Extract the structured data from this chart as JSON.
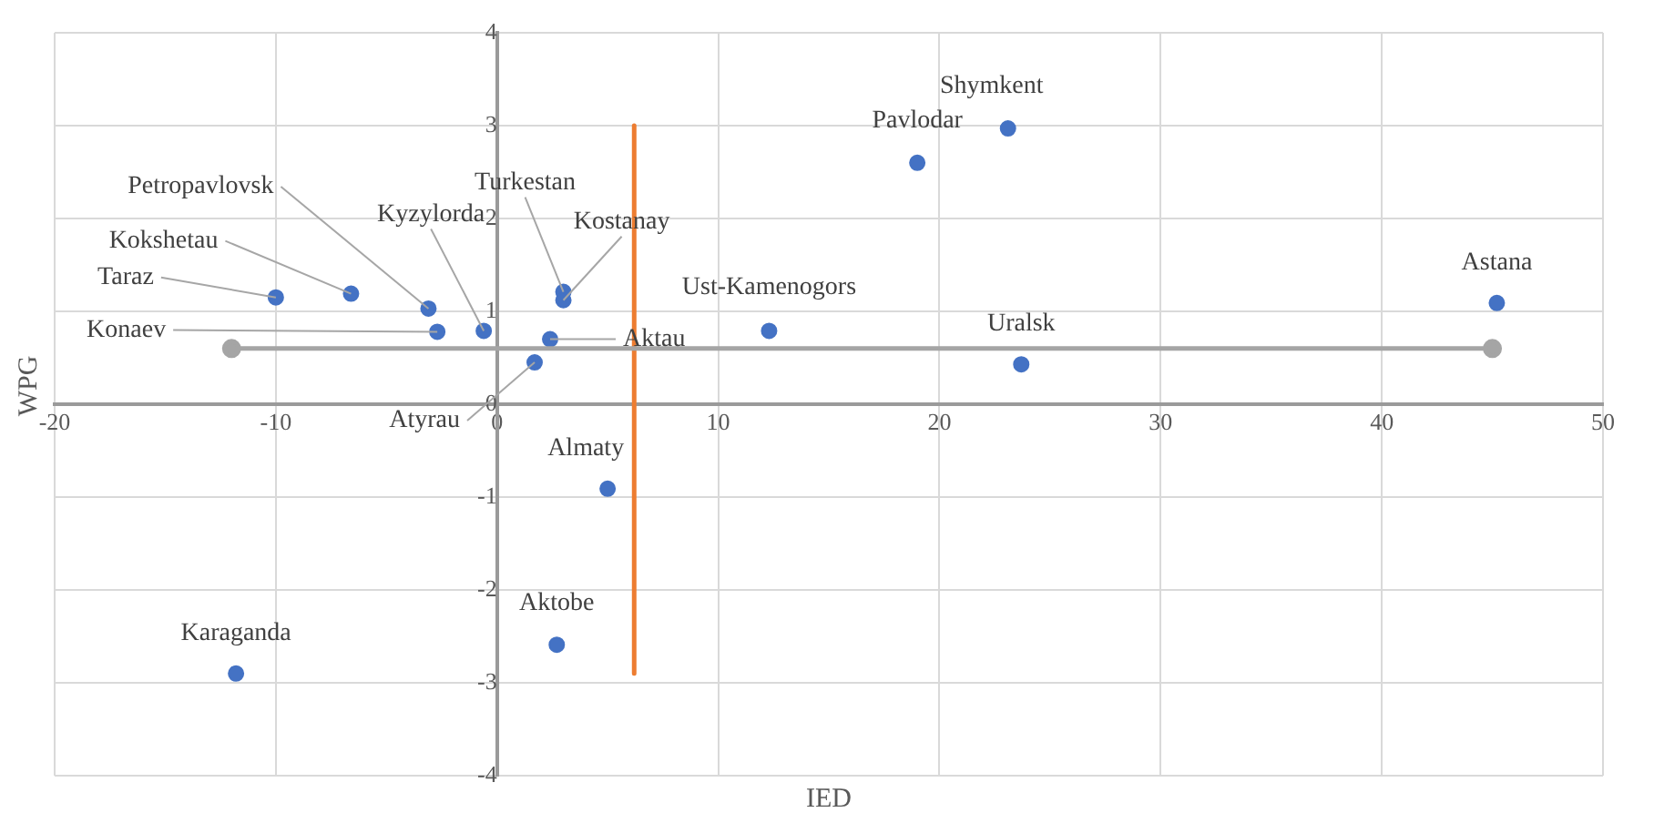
{
  "chart_data": {
    "type": "scatter",
    "xlabel": "IED",
    "ylabel": "WPG",
    "xlim": [
      -20,
      50
    ],
    "xticks": [
      -20,
      -10,
      0,
      10,
      20,
      30,
      40,
      50
    ],
    "ylim": [
      -4,
      4
    ],
    "yticks": [
      -4,
      -3,
      -2,
      -1,
      0,
      1,
      2,
      3,
      4
    ],
    "grid": true,
    "legend": false,
    "marker": "circle",
    "series": [
      {
        "type": "line",
        "color": "#a5a5a5",
        "marker": "circle",
        "x": [
          -12,
          45
        ],
        "values": [
          0.6,
          0.6
        ]
      },
      {
        "type": "line",
        "color": "#ed7d31",
        "marker": "none",
        "x": [
          6.2,
          6.2
        ],
        "values": [
          3.0,
          -2.9
        ]
      },
      {
        "type": "scatter",
        "color": "#4472c4",
        "x": [
          -10.0,
          -6.6,
          -3.1,
          -2.7,
          -0.6,
          3.0,
          3.0,
          2.4,
          1.7,
          12.3,
          5.0,
          2.7,
          -11.8,
          19.0,
          23.1,
          45.2,
          23.7
        ],
        "values": [
          1.15,
          1.19,
          1.03,
          0.78,
          0.79,
          1.21,
          1.12,
          0.7,
          0.45,
          0.79,
          -0.91,
          -2.59,
          -2.9,
          2.6,
          2.97,
          1.09,
          0.43
        ]
      }
    ],
    "annotations": [
      {
        "text": "Taraz",
        "x": -10.0,
        "y": 1.15
      },
      {
        "text": "Kokshetau",
        "x": -6.6,
        "y": 1.19
      },
      {
        "text": "Petropavlovsk",
        "x": -3.1,
        "y": 1.03
      },
      {
        "text": "Konaev",
        "x": -2.7,
        "y": 0.78
      },
      {
        "text": "Kyzylorda",
        "x": -0.6,
        "y": 0.79
      },
      {
        "text": "Turkestan",
        "x": 3.0,
        "y": 1.21
      },
      {
        "text": "Kostanay",
        "x": 3.0,
        "y": 1.12
      },
      {
        "text": "Aktau",
        "x": 2.4,
        "y": 0.7
      },
      {
        "text": "Atyrau",
        "x": 1.7,
        "y": 0.45
      },
      {
        "text": "Ust-Kamenogors",
        "x": 12.3,
        "y": 0.79
      },
      {
        "text": "Almaty",
        "x": 5.0,
        "y": -0.91
      },
      {
        "text": "Aktobe",
        "x": 2.7,
        "y": -2.59
      },
      {
        "text": "Karaganda",
        "x": -11.8,
        "y": -2.9
      },
      {
        "text": "Pavlodar",
        "x": 19.0,
        "y": 2.6
      },
      {
        "text": "Shymkent",
        "x": 23.1,
        "y": 2.97
      },
      {
        "text": "Astana",
        "x": 45.2,
        "y": 1.09
      },
      {
        "text": "Uralsk",
        "x": 23.7,
        "y": 0.43
      }
    ]
  }
}
